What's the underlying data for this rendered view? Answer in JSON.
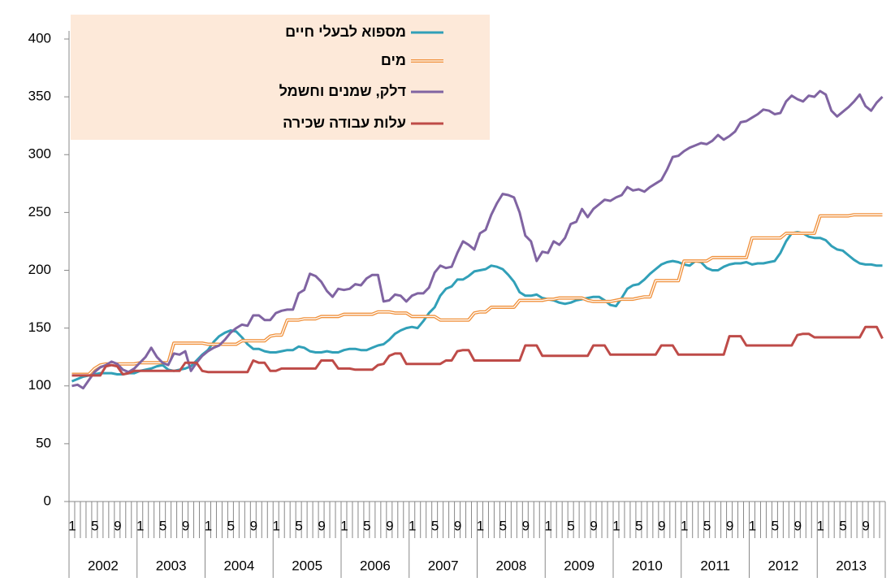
{
  "chart_data": {
    "type": "line",
    "categories": [
      "1",
      null,
      null,
      null,
      "5",
      null,
      null,
      null,
      "9",
      null,
      null,
      null,
      "1",
      null,
      null,
      null,
      "5",
      null,
      null,
      null,
      "9",
      null,
      null,
      null,
      "1",
      null,
      null,
      null,
      "5",
      null,
      null,
      null,
      "9",
      null,
      null,
      null,
      "1",
      null,
      null,
      null,
      "5",
      null,
      null,
      null,
      "9",
      null,
      null,
      null,
      "1",
      null,
      null,
      null,
      "5",
      null,
      null,
      null,
      "9",
      null,
      null,
      null,
      "1",
      null,
      null,
      null,
      "5",
      null,
      null,
      null,
      "9",
      null,
      null,
      null,
      "1",
      null,
      null,
      null,
      "5",
      null,
      null,
      null,
      "9",
      null,
      null,
      null,
      "1",
      null,
      null,
      null,
      "5",
      null,
      null,
      null,
      "9",
      null,
      null,
      null,
      "1",
      null,
      null,
      null,
      "5",
      null,
      null,
      null,
      "9",
      null,
      null,
      null,
      "1",
      null,
      null,
      null,
      "5",
      null,
      null,
      null,
      "9",
      null,
      null,
      null,
      "1",
      null,
      null,
      null,
      "5",
      null,
      null,
      null,
      "9",
      null,
      null,
      null,
      "1",
      null,
      null,
      null,
      "5",
      null,
      null,
      null,
      "9",
      null,
      null,
      null
    ],
    "years": [
      "2002",
      "2003",
      "2004",
      "2005",
      "2006",
      "2007",
      "2008",
      "2009",
      "2010",
      "2011",
      "2012",
      "2013"
    ],
    "ylim": [
      0,
      400
    ],
    "yticks": [
      0,
      50,
      100,
      150,
      200,
      250,
      300,
      350,
      400
    ],
    "grid": false,
    "series": [
      {
        "name": "מספוא לבעלי חיים",
        "color": "#31a0b8",
        "values": [
          104,
          106,
          108,
          109,
          110,
          111,
          111,
          111,
          110,
          110,
          111,
          111,
          113,
          114,
          115,
          117,
          118,
          114,
          113,
          114,
          115,
          117,
          122,
          127,
          131,
          138,
          143,
          146,
          148,
          147,
          142,
          136,
          132,
          132,
          130,
          129,
          129,
          130,
          131,
          131,
          134,
          133,
          130,
          129,
          129,
          130,
          129,
          129,
          131,
          132,
          132,
          131,
          131,
          133,
          135,
          136,
          140,
          145,
          148,
          150,
          151,
          150,
          156,
          163,
          168,
          178,
          184,
          186,
          192,
          192,
          195,
          199,
          200,
          201,
          204,
          203,
          201,
          196,
          190,
          181,
          178,
          178,
          179,
          176,
          175,
          174,
          172,
          171,
          172,
          174,
          175,
          176,
          177,
          177,
          174,
          170,
          169,
          176,
          184,
          187,
          188,
          192,
          197,
          201,
          205,
          207,
          208,
          207,
          205,
          204,
          208,
          207,
          202,
          200,
          200,
          203,
          205,
          206,
          206,
          207,
          205,
          206,
          206,
          207,
          208,
          215,
          225,
          232,
          233,
          232,
          229,
          228,
          228,
          226,
          221,
          218,
          217,
          213,
          209,
          206,
          205,
          205,
          204,
          204
        ]
      },
      {
        "name": "מים",
        "color": "#f0913c",
        "values": [
          110,
          110,
          110,
          110,
          115,
          118,
          119,
          119,
          119,
          119,
          119,
          119,
          120,
          120,
          120,
          120,
          120,
          120,
          137,
          137,
          137,
          137,
          137,
          137,
          136,
          136,
          136,
          136,
          136,
          136,
          139,
          139,
          139,
          139,
          139,
          143,
          144,
          144,
          157,
          157,
          157,
          158,
          158,
          158,
          160,
          160,
          160,
          160,
          162,
          162,
          162,
          162,
          162,
          162,
          164,
          164,
          164,
          163,
          163,
          163,
          160,
          160,
          160,
          160,
          160,
          157,
          157,
          157,
          157,
          157,
          157,
          163,
          164,
          164,
          168,
          168,
          168,
          168,
          168,
          174,
          174,
          174,
          174,
          174,
          175,
          175,
          176,
          176,
          176,
          176,
          176,
          174,
          173,
          173,
          173,
          173,
          174,
          175,
          175,
          175,
          176,
          177,
          177,
          191,
          191,
          191,
          191,
          191,
          208,
          208,
          208,
          208,
          208,
          211,
          211,
          211,
          211,
          211,
          211,
          211,
          228,
          228,
          228,
          228,
          228,
          228,
          232,
          232,
          232,
          232,
          232,
          232,
          247,
          247,
          247,
          247,
          247,
          247,
          248,
          248,
          248,
          248,
          248,
          248
        ]
      },
      {
        "name": "דלק, שמנים וחשמל",
        "color": "#8064a2",
        "values": [
          100,
          101,
          98,
          105,
          112,
          116,
          118,
          121,
          119,
          114,
          112,
          115,
          120,
          125,
          133,
          125,
          120,
          118,
          128,
          127,
          130,
          113,
          120,
          126,
          130,
          133,
          135,
          140,
          146,
          150,
          153,
          152,
          161,
          161,
          157,
          157,
          163,
          165,
          166,
          166,
          180,
          183,
          197,
          195,
          190,
          182,
          177,
          184,
          183,
          184,
          188,
          187,
          193,
          196,
          196,
          173,
          174,
          179,
          178,
          173,
          178,
          180,
          180,
          185,
          198,
          204,
          202,
          203,
          215,
          225,
          222,
          218,
          232,
          235,
          248,
          258,
          266,
          265,
          263,
          250,
          230,
          225,
          208,
          216,
          215,
          225,
          222,
          228,
          240,
          242,
          253,
          246,
          253,
          257,
          261,
          260,
          263,
          265,
          272,
          269,
          270,
          268,
          272,
          275,
          278,
          287,
          298,
          299,
          303,
          306,
          308,
          310,
          309,
          312,
          317,
          313,
          316,
          320,
          328,
          329,
          332,
          335,
          339,
          338,
          335,
          336,
          346,
          351,
          348,
          346,
          351,
          350,
          355,
          352,
          338,
          333,
          337,
          341,
          346,
          352,
          342,
          338,
          345,
          350
        ]
      },
      {
        "name": "עלות עבודה שכירה",
        "color": "#be4b48",
        "values": [
          109,
          109,
          109,
          109,
          109,
          109,
          117,
          118,
          117,
          110,
          111,
          113,
          113,
          113,
          113,
          113,
          113,
          113,
          113,
          113,
          120,
          120,
          120,
          113,
          112,
          112,
          112,
          112,
          112,
          112,
          112,
          112,
          122,
          120,
          120,
          113,
          113,
          115,
          115,
          115,
          115,
          115,
          115,
          115,
          122,
          122,
          122,
          115,
          115,
          115,
          114,
          114,
          114,
          114,
          118,
          119,
          126,
          128,
          128,
          119,
          119,
          119,
          119,
          119,
          119,
          119,
          122,
          122,
          130,
          131,
          131,
          122,
          122,
          122,
          122,
          122,
          122,
          122,
          122,
          122,
          135,
          135,
          135,
          126,
          126,
          126,
          126,
          126,
          126,
          126,
          126,
          126,
          135,
          135,
          135,
          127,
          127,
          127,
          127,
          127,
          127,
          127,
          127,
          127,
          135,
          135,
          135,
          127,
          127,
          127,
          127,
          127,
          127,
          127,
          127,
          127,
          143,
          143,
          143,
          135,
          135,
          135,
          135,
          135,
          135,
          135,
          135,
          135,
          144,
          145,
          145,
          142,
          142,
          142,
          142,
          142,
          142,
          142,
          142,
          142,
          151,
          151,
          151,
          141
        ]
      }
    ]
  }
}
